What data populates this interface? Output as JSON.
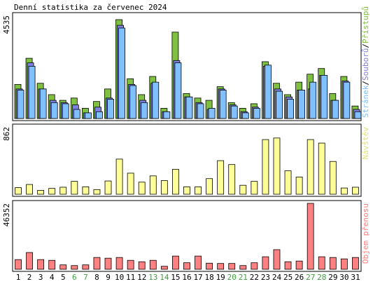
{
  "chart_data": {
    "type": "bar",
    "title": "Denní statistika za červenec 2024",
    "days": [
      "1",
      "2",
      "3",
      "4",
      "5",
      "6",
      "7",
      "8",
      "9",
      "10",
      "11",
      "12",
      "13",
      "14",
      "15",
      "16",
      "17",
      "18",
      "19",
      "20",
      "21",
      "22",
      "23",
      "24",
      "25",
      "26",
      "27",
      "28",
      "29",
      "30",
      "31"
    ],
    "weekend_days": [
      "6",
      "7",
      "13",
      "14",
      "20",
      "21",
      "27",
      "28"
    ],
    "panels": [
      {
        "id": "hits",
        "ylabel_max": "4535",
        "ymax": 4535,
        "legend": [
          "Přístupů",
          "Souborů",
          "Stránek"
        ],
        "legend_sep": "/",
        "series": [
          {
            "name": "Přístupů",
            "color": "#80c040",
            "values": [
              1500,
              2650,
              1550,
              1050,
              800,
              900,
              450,
              750,
              1300,
              4350,
              1750,
              1050,
              1850,
              450,
              3800,
              1100,
              900,
              800,
              1400,
              700,
              450,
              650,
              2500,
              1550,
              1050,
              1600,
              1950,
              2200,
              1100,
              1850,
              550
            ]
          },
          {
            "name": "Souborů",
            "color": "#8080e0",
            "values": [
              1300,
              2450,
              1300,
              800,
              700,
              600,
              250,
              500,
              900,
              4100,
              1500,
              800,
              1550,
              300,
              2550,
              950,
              700,
              400,
              1300,
              600,
              300,
              500,
              2300,
              1300,
              950,
              1250,
              1300,
              1900,
              800,
              1650,
              400
            ]
          },
          {
            "name": "Stránek",
            "color": "#80c0ff",
            "values": [
              1250,
              2300,
              1300,
              700,
              650,
              400,
              250,
              300,
              850,
              3980,
              1450,
              700,
              1600,
              300,
              2450,
              950,
              650,
              450,
              1250,
              550,
              250,
              450,
              2350,
              1200,
              850,
              1250,
              1600,
              1900,
              800,
              1600,
              300
            ]
          }
        ]
      },
      {
        "id": "visits",
        "ylabel_max": "862",
        "ymax": 862,
        "legend": [
          "Návštěv"
        ],
        "series": [
          {
            "name": "Návštěv",
            "color": "#ffff99",
            "values": [
              85,
              125,
              50,
              75,
              90,
              165,
              95,
              60,
              170,
              450,
              270,
              155,
              235,
              175,
              320,
              95,
              95,
              200,
              430,
              380,
              115,
              165,
              700,
              720,
              300,
              220,
              700,
              655,
              420,
              80,
              90
            ]
          }
        ]
      },
      {
        "id": "kbytes",
        "ylabel_max": "46352",
        "ymax": 46352,
        "legend": [
          "Objem přenosu"
        ],
        "series": [
          {
            "name": "Objem přenosu",
            "color": "#ff8080",
            "values": [
              6800,
              11800,
              6800,
              6300,
              3100,
              2600,
              3100,
              8300,
              7800,
              8300,
              6300,
              5300,
              6300,
              2100,
              9300,
              4600,
              9300,
              4300,
              4100,
              4100,
              2600,
              4600,
              8800,
              13800,
              5300,
              5800,
              46352,
              8800,
              8300,
              7300,
              8300
            ]
          }
        ]
      }
    ]
  }
}
